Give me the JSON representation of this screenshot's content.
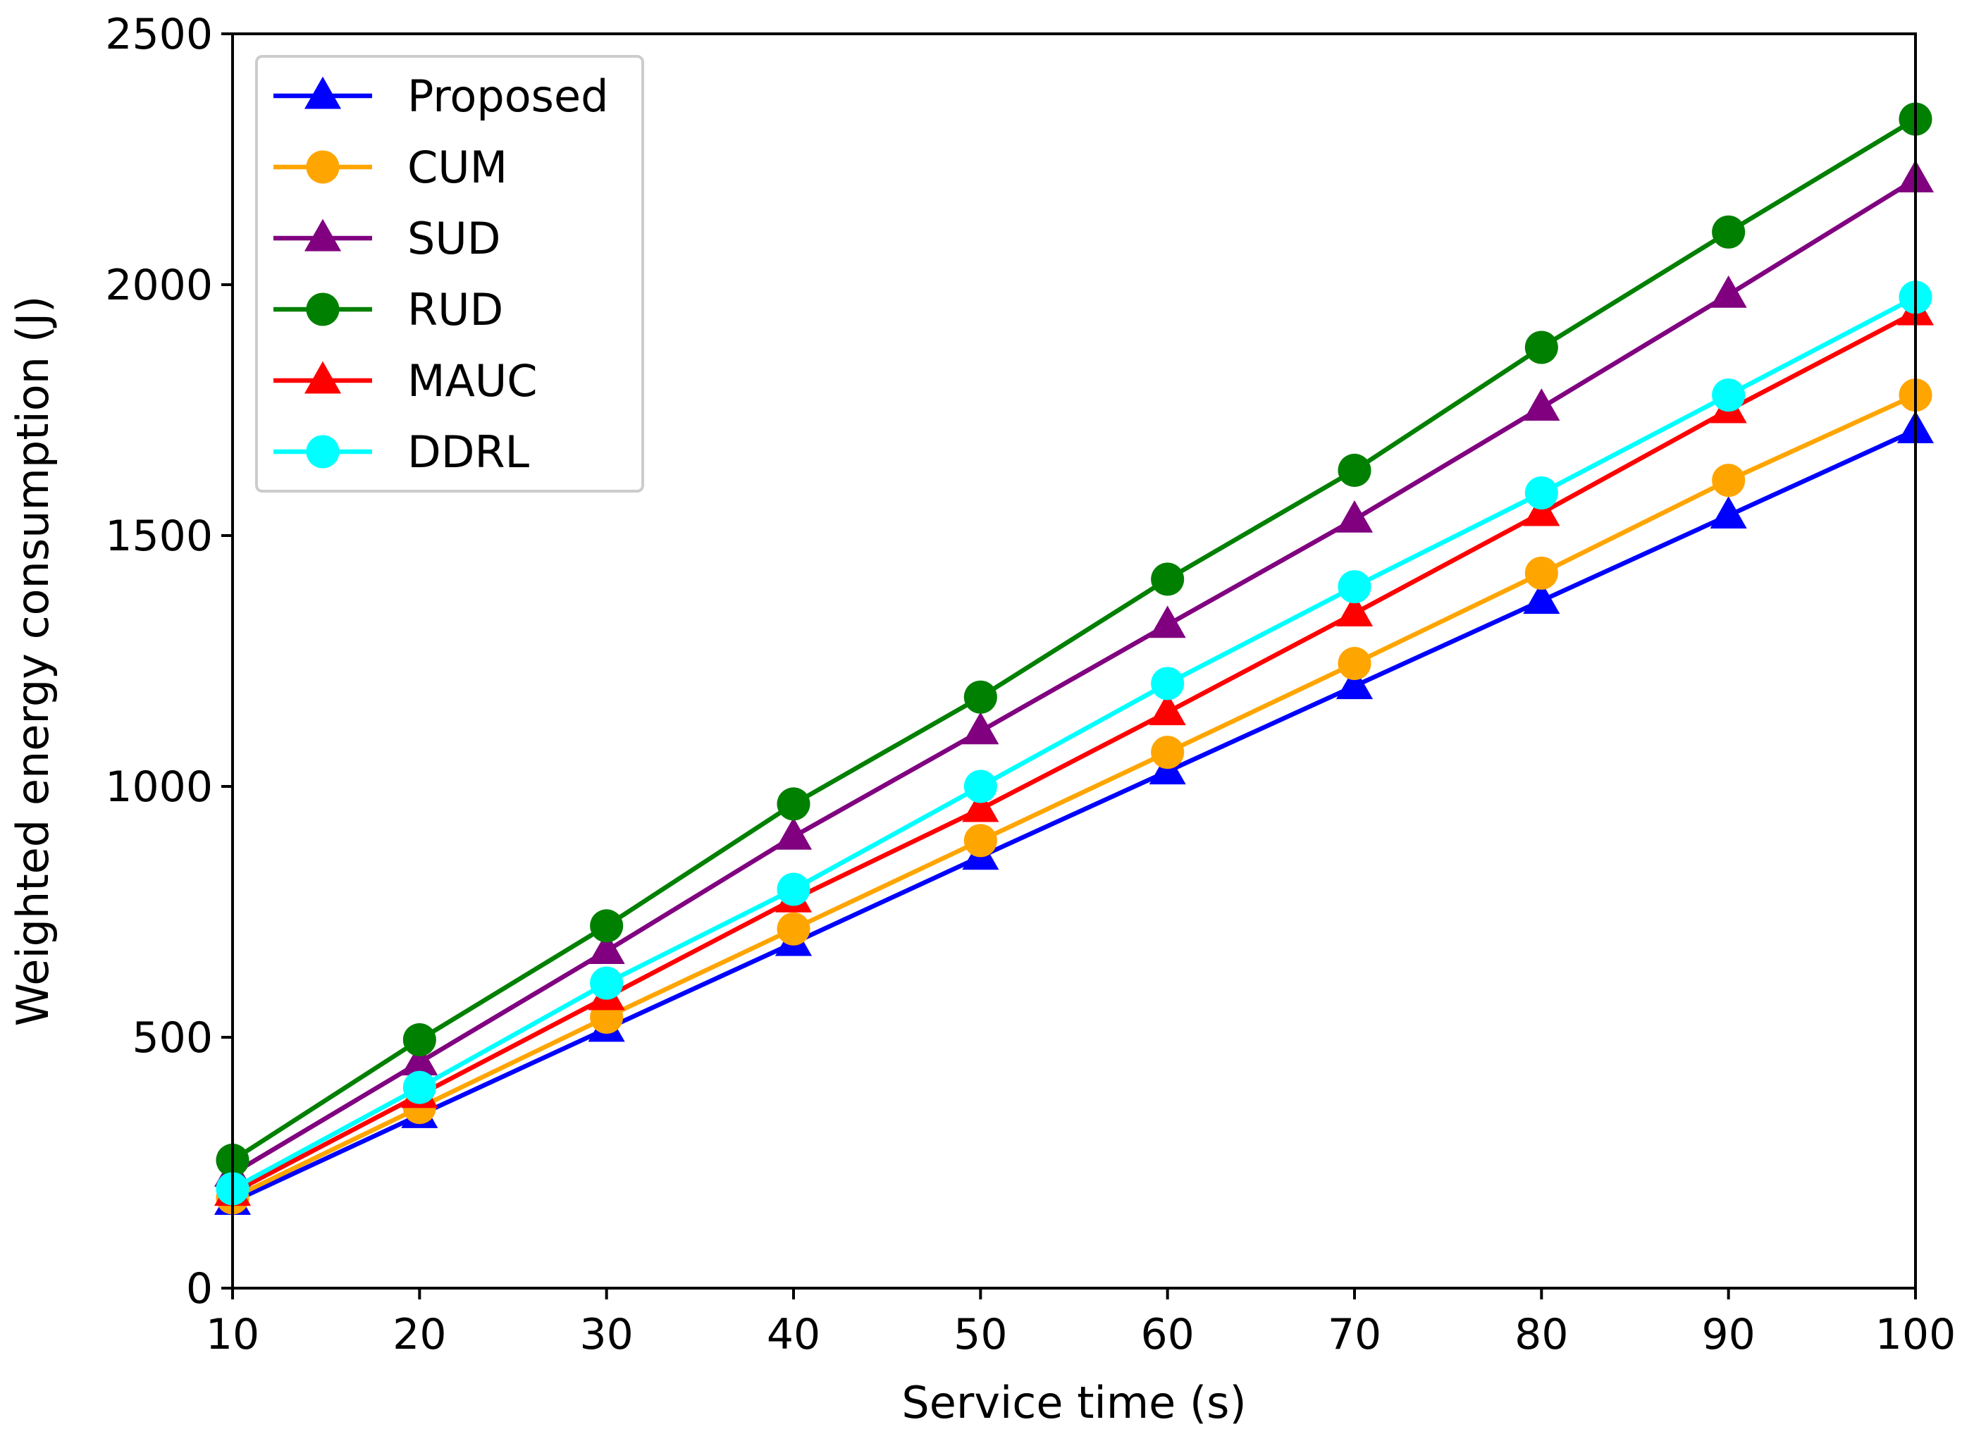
{
  "chart_data": {
    "type": "line",
    "title": "",
    "xlabel": "Service time (s)",
    "ylabel": "Weighted energy consumption (J)",
    "x": [
      10,
      20,
      30,
      40,
      50,
      60,
      70,
      80,
      90,
      100
    ],
    "xlim": [
      10,
      100
    ],
    "ylim": [
      0,
      2500
    ],
    "xticks": [
      "10",
      "20",
      "30",
      "40",
      "50",
      "60",
      "70",
      "80",
      "90",
      "100"
    ],
    "yticks": [
      "0",
      "500",
      "1000",
      "1500",
      "2000",
      "2500"
    ],
    "grid": false,
    "legend_position": "top-left",
    "series": [
      {
        "name": "Proposed",
        "color": "#0000ff",
        "marker": "triangle",
        "values": [
          172,
          345,
          517,
          688,
          860,
          1030,
          1200,
          1370,
          1540,
          1710
        ]
      },
      {
        "name": "CUM",
        "color": "#ffa500",
        "marker": "circle",
        "values": [
          180,
          360,
          540,
          716,
          892,
          1068,
          1245,
          1425,
          1610,
          1780
        ]
      },
      {
        "name": "SUD",
        "color": "#800080",
        "marker": "triangle",
        "values": [
          228,
          450,
          672,
          900,
          1110,
          1322,
          1532,
          1755,
          1980,
          2210
        ]
      },
      {
        "name": "RUD",
        "color": "#008000",
        "marker": "circle",
        "values": [
          255,
          495,
          722,
          965,
          1178,
          1413,
          1630,
          1875,
          2105,
          2330
        ]
      },
      {
        "name": "MAUC",
        "color": "#ff0000",
        "marker": "triangle",
        "values": [
          190,
          385,
          580,
          775,
          955,
          1148,
          1345,
          1545,
          1750,
          1945
        ]
      },
      {
        "name": "DDRL",
        "color": "#00ffff",
        "marker": "circle",
        "values": [
          198,
          400,
          608,
          795,
          1000,
          1205,
          1398,
          1585,
          1780,
          1975
        ]
      }
    ]
  }
}
